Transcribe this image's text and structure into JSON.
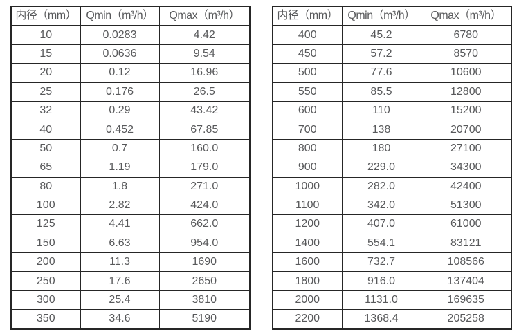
{
  "chart_data": [
    {
      "type": "table",
      "name": "flow-rate-table-small-diameter",
      "columns": [
        "内径（mm）",
        "Qmin（m³/h）",
        "Qmax（m³/h）"
      ],
      "rows": [
        [
          "10",
          "0.0283",
          "4.42"
        ],
        [
          "15",
          "0.0636",
          "9.54"
        ],
        [
          "20",
          "0.12",
          "16.96"
        ],
        [
          "25",
          "0.176",
          "26.5"
        ],
        [
          "32",
          "0.29",
          "43.42"
        ],
        [
          "40",
          "0.452",
          "67.85"
        ],
        [
          "50",
          "0.7",
          "160.0"
        ],
        [
          "65",
          "1.19",
          "179.0"
        ],
        [
          "80",
          "1.8",
          "271.0"
        ],
        [
          "100",
          "2.82",
          "424.0"
        ],
        [
          "125",
          "4.41",
          "662.0"
        ],
        [
          "150",
          "6.63",
          "954.0"
        ],
        [
          "200",
          "11.3",
          "1690"
        ],
        [
          "250",
          "17.6",
          "2650"
        ],
        [
          "300",
          "25.4",
          "3810"
        ],
        [
          "350",
          "34.6",
          "5190"
        ]
      ]
    },
    {
      "type": "table",
      "name": "flow-rate-table-large-diameter",
      "columns": [
        "内径（mm）",
        "Qmin（m³/h）",
        "Qmax（m³/h）"
      ],
      "rows": [
        [
          "400",
          "45.2",
          "6780"
        ],
        [
          "450",
          "57.2",
          "8570"
        ],
        [
          "500",
          "77.6",
          "10600"
        ],
        [
          "550",
          "85.5",
          "12800"
        ],
        [
          "600",
          "110",
          "15200"
        ],
        [
          "700",
          "138",
          "20700"
        ],
        [
          "800",
          "180",
          "27100"
        ],
        [
          "900",
          "229.0",
          "34300"
        ],
        [
          "1000",
          "282.0",
          "42400"
        ],
        [
          "1100",
          "342.0",
          "51300"
        ],
        [
          "1200",
          "407.0",
          "61000"
        ],
        [
          "1400",
          "554.1",
          "83121"
        ],
        [
          "1600",
          "732.7",
          "108566"
        ],
        [
          "1800",
          "916.0",
          "137404"
        ],
        [
          "2000",
          "1131.0",
          "169635"
        ],
        [
          "2200",
          "1368.4",
          "205258"
        ]
      ]
    }
  ],
  "colors": {
    "border": "#262626",
    "text": "#58595b",
    "background": "#ffffff"
  }
}
